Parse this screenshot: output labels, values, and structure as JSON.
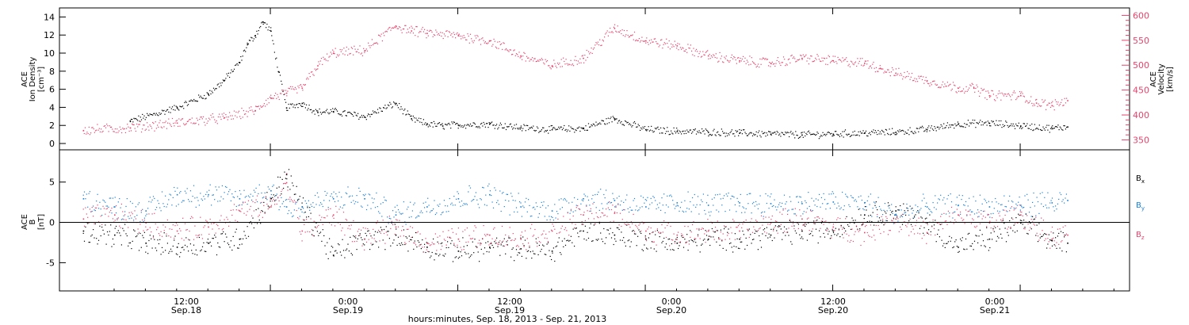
{
  "chart_data": [
    {
      "type": "scatter",
      "panel": "density-velocity",
      "ylabel_lines": [
        "ACE",
        "Ion Density",
        "[cm⁻³]"
      ],
      "ylabel_right_lines": [
        "ACE",
        "Velocity",
        "[km/s]"
      ],
      "ylim": [
        -0.7,
        15
      ],
      "ylim_right": [
        330,
        615
      ],
      "yticks": [
        "0",
        "2",
        "4",
        "6",
        "8",
        "10",
        "12",
        "14"
      ],
      "yticks_right": [
        "350",
        "400",
        "450",
        "500",
        "550",
        "600"
      ],
      "colors": {
        "density": "#000000",
        "velocity": "#e8436c"
      },
      "series": [
        {
          "key": "density",
          "axis": "left",
          "x": [
            3,
            6,
            8,
            9,
            10,
            10.5,
            11,
            11.5,
            12,
            12.5,
            13,
            14,
            15,
            16,
            18,
            20,
            21,
            22,
            23,
            24,
            26,
            28,
            30,
            32,
            34,
            36,
            38,
            40,
            42,
            44,
            46,
            48,
            50,
            52,
            54,
            56,
            58,
            60,
            62,
            63
          ],
          "values": [
            2.5,
            4,
            5.5,
            7,
            9,
            11,
            12,
            13.5,
            12.5,
            8,
            4,
            4.5,
            3.5,
            3.6,
            3,
            4.5,
            2.8,
            2.2,
            2,
            2.1,
            2.2,
            1.8,
            1.6,
            1.7,
            2.8,
            1.6,
            1.4,
            1.3,
            1.2,
            1.1,
            1.0,
            1.1,
            1.2,
            1.3,
            1.6,
            2.2,
            2.3,
            2.0,
            1.7,
            1.9
          ]
        },
        {
          "key": "velocity",
          "axis": "right",
          "x": [
            0,
            3,
            6,
            9,
            11,
            12,
            13,
            14,
            15,
            16,
            18,
            20,
            21,
            22,
            24,
            26,
            28,
            30,
            32,
            34,
            36,
            38,
            40,
            42,
            44,
            46,
            48,
            50,
            51,
            52,
            54,
            56,
            57,
            58,
            60,
            61,
            62,
            63
          ],
          "values": [
            370,
            375,
            385,
            395,
            410,
            435,
            445,
            455,
            500,
            525,
            530,
            580,
            570,
            565,
            560,
            550,
            520,
            500,
            515,
            575,
            550,
            540,
            520,
            510,
            505,
            515,
            510,
            505,
            495,
            485,
            470,
            455,
            455,
            440,
            440,
            425,
            420,
            430
          ]
        }
      ]
    },
    {
      "type": "scatter",
      "panel": "magnetic-field",
      "ylabel_lines": [
        "ACE",
        "B",
        "[nT]"
      ],
      "ylim": [
        -8.5,
        9
      ],
      "yticks": [
        "-5",
        "0",
        "5"
      ],
      "zero_line": true,
      "series": [
        {
          "key": "bx",
          "name_main": "B",
          "name_sub": "x",
          "color": "#000000",
          "x": [
            0,
            2,
            4,
            6,
            8,
            10,
            12,
            13,
            14,
            16,
            18,
            20,
            22,
            24,
            26,
            28,
            30,
            32,
            34,
            36,
            38,
            40,
            42,
            44,
            46,
            48,
            50,
            52,
            54,
            56,
            58,
            60,
            62,
            63
          ],
          "values": [
            -1,
            -1.5,
            -2.5,
            -3,
            -2.5,
            -2,
            3,
            6,
            2,
            -4,
            -2,
            -1.5,
            -3,
            -3.5,
            -3,
            -3.2,
            -3.5,
            -1,
            -1.5,
            -2,
            -2.5,
            -2,
            -2,
            -1.5,
            -1,
            -1,
            1,
            1.5,
            0,
            -3,
            -2,
            0,
            -2.2,
            -2.5
          ]
        },
        {
          "key": "by",
          "name_main": "B",
          "name_sub": "y",
          "color": "#1a7fd6",
          "x": [
            0,
            2,
            4,
            6,
            8,
            10,
            12,
            13,
            14,
            16,
            18,
            20,
            22,
            24,
            26,
            28,
            30,
            32,
            34,
            36,
            38,
            40,
            42,
            44,
            46,
            48,
            50,
            52,
            54,
            56,
            58,
            60,
            62,
            63
          ],
          "values": [
            3,
            2,
            1.5,
            3.5,
            3.5,
            3,
            4,
            2,
            2,
            3,
            3,
            1,
            2,
            3,
            3.5,
            2,
            1.5,
            3,
            2.8,
            2,
            2.5,
            2.2,
            2.5,
            2.4,
            2.4,
            2.6,
            2.5,
            1,
            2,
            2.2,
            2,
            2.2,
            2.5,
            2.8
          ]
        },
        {
          "key": "bz",
          "name_main": "B",
          "name_sub": "z",
          "color": "#e8436c",
          "x": [
            0,
            2,
            4,
            6,
            8,
            10,
            12,
            13,
            14,
            16,
            18,
            20,
            22,
            24,
            26,
            28,
            30,
            32,
            34,
            36,
            38,
            40,
            42,
            44,
            46,
            48,
            50,
            52,
            54,
            56,
            58,
            60,
            62,
            63
          ],
          "values": [
            0.5,
            1,
            0,
            -1,
            -0.5,
            1.5,
            2,
            5,
            -1,
            1,
            -2,
            -0.5,
            -2.5,
            -2,
            -1.5,
            -2,
            -1,
            1,
            1.2,
            -1,
            -1.5,
            -1,
            -1,
            0,
            0.5,
            -0.5,
            -1.2,
            0.5,
            -1.2,
            1,
            0,
            1,
            -2,
            -1.5
          ]
        }
      ]
    }
  ],
  "x_axis": {
    "xlim": [
      -1.5,
      67
    ],
    "tick_positions": [
      12,
      24,
      36,
      48,
      60
    ],
    "time_labels": [
      "12:00",
      "0:00",
      "12:00",
      "0:00",
      "12:00",
      "0:00"
    ],
    "day_labels": [
      "Sep.18",
      "Sep.19",
      "Sep.19",
      "Sep.20",
      "Sep.20",
      "Sep.21"
    ],
    "label_positions": [
      9.5,
      21.5,
      33.5,
      45.5,
      57.5,
      69.5
    ],
    "title": "hours:minutes, Sep. 18, 2013 - Sep. 21, 2013"
  }
}
